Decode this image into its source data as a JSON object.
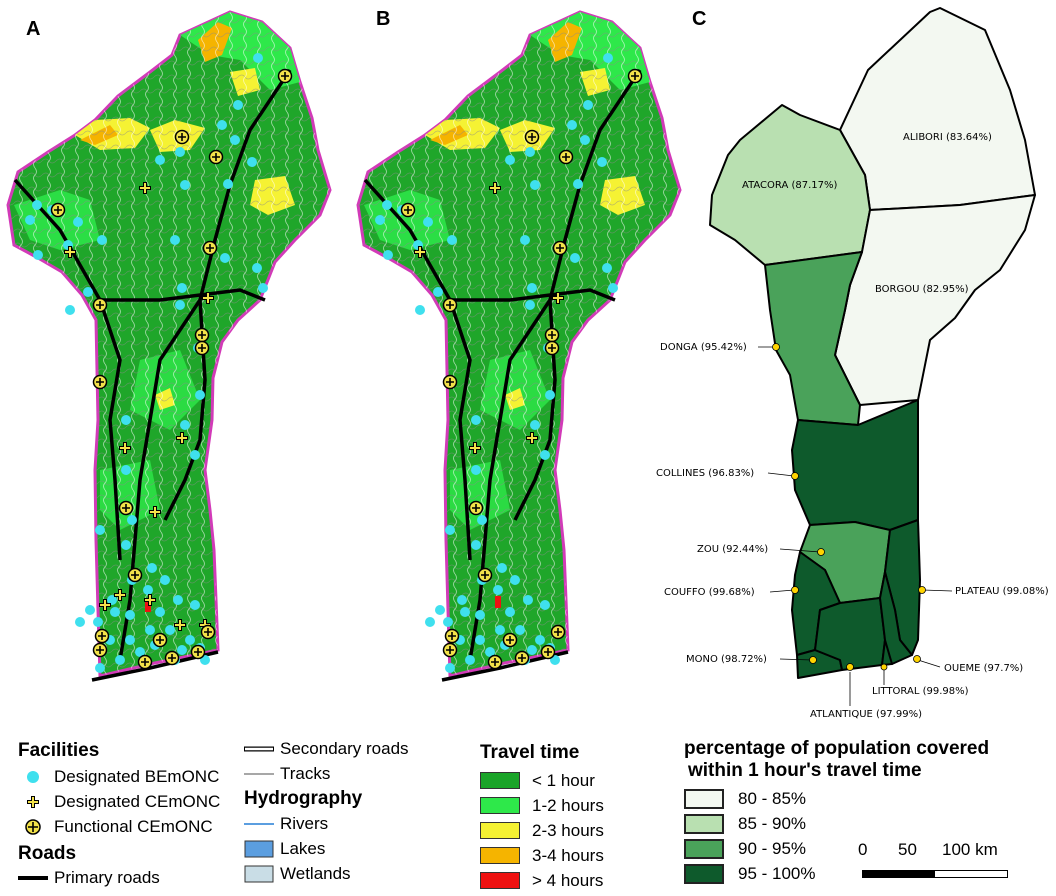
{
  "panels": [
    "A",
    "B",
    "C"
  ],
  "legend_facilities": {
    "title": "Facilities",
    "items": [
      {
        "label": "Designated BEmONC",
        "icon": "cyan-dot-icon",
        "color": "#3fe0ee"
      },
      {
        "label": "Designated CEmONC",
        "icon": "plus-icon",
        "color": "#f3e24a"
      },
      {
        "label": "Functional CEmONC",
        "icon": "circled-plus-icon",
        "color": "#f3e24a"
      }
    ],
    "roads_title": "Roads",
    "primary_roads": "Primary roads"
  },
  "legend_network": {
    "secondary_roads": "Secondary roads",
    "tracks": "Tracks",
    "hydro_title": "Hydrography",
    "rivers": "Rivers",
    "lakes": "Lakes",
    "wetlands": "Wetlands"
  },
  "legend_travel": {
    "title": "Travel time",
    "items": [
      {
        "label": "< 1 hour",
        "color": "#1aa428"
      },
      {
        "label": "1-2 hours",
        "color": "#2ee84a"
      },
      {
        "label": "2-3 hours",
        "color": "#f5f233"
      },
      {
        "label": "3-4 hours",
        "color": "#f5b400"
      },
      {
        "label": "> 4 hours",
        "color": "#ee1111"
      }
    ]
  },
  "legend_coverage": {
    "title_line1": "percentage of population covered",
    "title_line2": "within 1 hour's travel time",
    "items": [
      {
        "label": "80 - 85%",
        "color": "#f3f8f1"
      },
      {
        "label": "85 - 90%",
        "color": "#b9e0b1"
      },
      {
        "label": "90 - 95%",
        "color": "#4aa25a"
      },
      {
        "label": "95 - 100%",
        "color": "#0e5a2c"
      }
    ]
  },
  "scalebar": {
    "ticks": [
      "0",
      "50",
      "100 km"
    ]
  },
  "departments": [
    {
      "name": "ALIBORI (83.64%)",
      "value": 83.64
    },
    {
      "name": "ATACORA (87.17%)",
      "value": 87.17
    },
    {
      "name": "BORGOU (82.95%)",
      "value": 82.95
    },
    {
      "name": "DONGA (95.42%)",
      "value": 95.42
    },
    {
      "name": "COLLINES (96.83%)",
      "value": 96.83
    },
    {
      "name": "ZOU (92.44%)",
      "value": 92.44
    },
    {
      "name": "COUFFO (99.68%)",
      "value": 99.68
    },
    {
      "name": "PLATEAU (99.08%)",
      "value": 99.08
    },
    {
      "name": "MONO (98.72%)",
      "value": 98.72
    },
    {
      "name": "OUEME (97.7%)",
      "value": 97.7
    },
    {
      "name": "LITTORAL (99.98%)",
      "value": 99.98
    },
    {
      "name": "ATLANTIQUE (97.99%)",
      "value": 97.99
    }
  ]
}
